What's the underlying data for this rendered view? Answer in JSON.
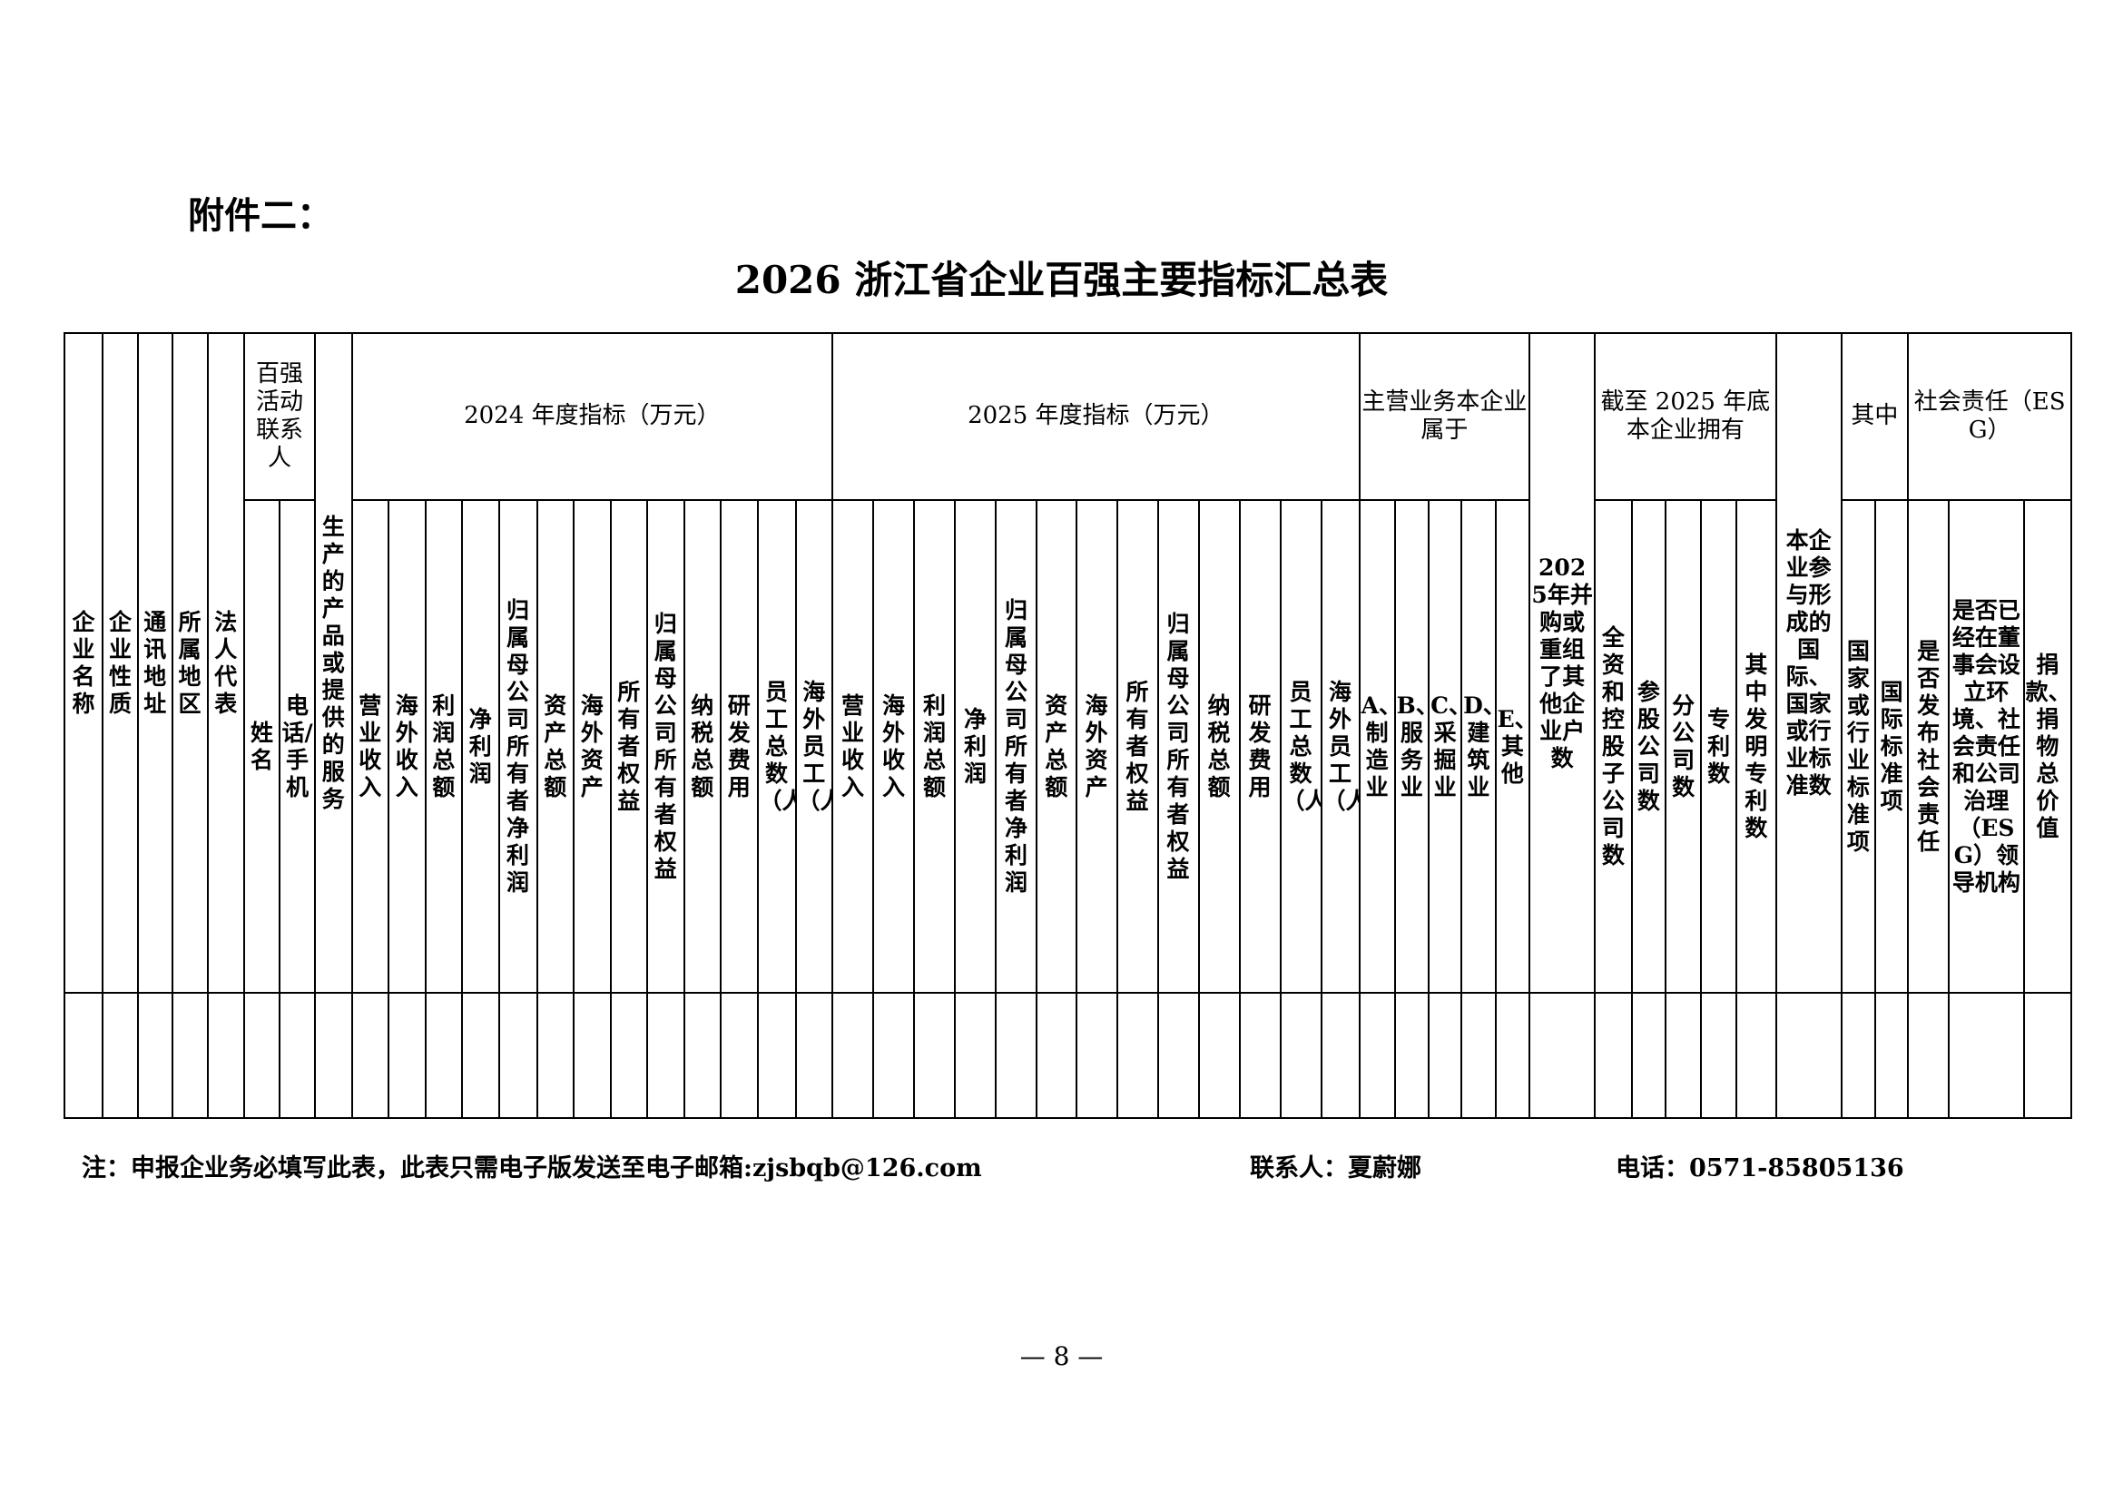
{
  "attachment_label": "附件二：",
  "title": "2026 浙江省企业百强主要指标汇总表",
  "table": {
    "columns": [
      {
        "label": "企业名称"
      },
      {
        "label": "企业性质"
      },
      {
        "label": "通讯地址"
      },
      {
        "label": "所属地区"
      },
      {
        "label": "法人代表"
      },
      {
        "label": "百强活动联系人",
        "children": [
          "姓 名",
          "电话/手机"
        ]
      },
      {
        "label": "生产的产品或提供的服务"
      },
      {
        "label": "2024 年度指标（万元）",
        "children": [
          "营业收入",
          "海外收入",
          "利润总额",
          "净利润",
          "归属母公司所有者净利润",
          "资产总额",
          "海外资产",
          "所有者权益",
          "归属母公司所有者权益",
          "纳税总额",
          "研发费用",
          "员工总数（人）",
          "海外员工（人）"
        ]
      },
      {
        "label": "2025 年度指标（万元）",
        "children": [
          "营业收入",
          "海外收入",
          "利润总额",
          "净利润",
          "归属母公司所有者净利润",
          "资产总额",
          "海外资产",
          "所有者权益",
          "归属母公司所有者权益",
          "纳税总额",
          "研发费用",
          "员工总数（人）",
          "海外员工（人）"
        ]
      },
      {
        "label": "主营业务本企业属于",
        "children": [
          "A、制造业",
          "B、服务业",
          "C、采掘业",
          "D、建筑业",
          "E、其他"
        ]
      },
      {
        "label": "2025年并购或重组了其他企业户数"
      },
      {
        "label": "截至 2025 年底本企业拥有",
        "children": [
          "全资和控股子公司数",
          "参股公司数",
          "分公司数",
          "专利数",
          "其中发明专利数"
        ]
      },
      {
        "label": "本企业参与形成的国际、国家或行业标准数"
      },
      {
        "label": "其中",
        "children": [
          "国家或行业标准项",
          "国际标准项"
        ]
      },
      {
        "label": "社会责任（ESG）",
        "children": [
          "是否发布社会责任",
          "是否已经在董事会设立环境、社会责任和公司治理（ESG）领导机构",
          "捐款、捐物总价值"
        ]
      }
    ]
  },
  "footer": {
    "note": "注：申报企业务必填写此表，此表只需电子版发送至电子邮箱:zjsbqb@126.com",
    "contact": "联系人：夏蔚娜",
    "phone": "电话：0571-85805136"
  },
  "page_number": "— 8 —"
}
